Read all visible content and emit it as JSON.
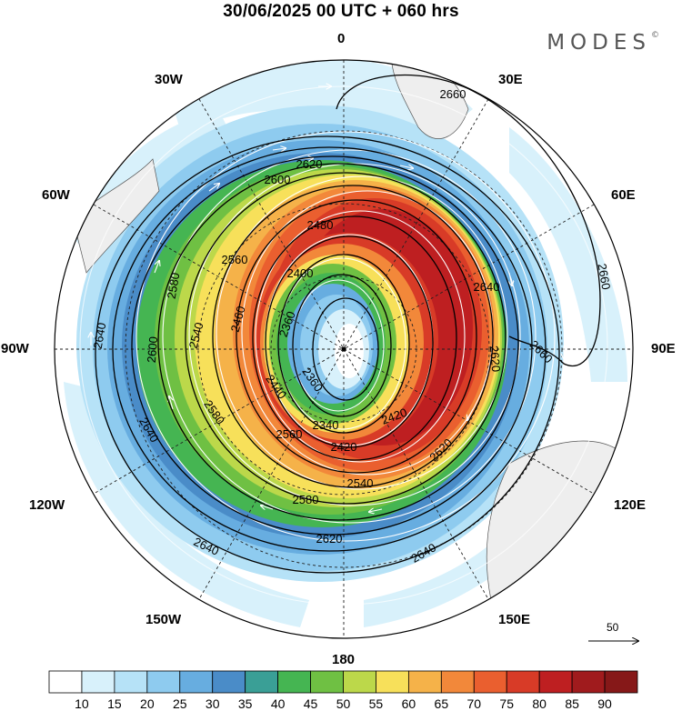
{
  "title": "30/06/2025  00 UTC  + 060 hrs",
  "brand": "MODES",
  "brand_mark": "©",
  "longitude_labels": {
    "n": "0",
    "nw": "30W",
    "ne": "30E",
    "wnw": "60W",
    "ene": "60E",
    "w": "90W",
    "e": "90E",
    "wsw": "120W",
    "ese": "120E",
    "sw": "150W",
    "se": "150E",
    "s": "180"
  },
  "contour_labels": [
    "2660",
    "2620",
    "2600",
    "2480",
    "2640",
    "2660",
    "2580",
    "2560",
    "2400",
    "2640",
    "2660",
    "2540",
    "2460",
    "2360",
    "2620",
    "2600",
    "2360",
    "2340",
    "2440",
    "2420",
    "2580",
    "2420",
    "2560",
    "2640",
    "2620",
    "2540",
    "2580",
    "2640",
    "2620",
    "2640"
  ],
  "reference_vector": "50",
  "colorbar": {
    "ticks": [
      "10",
      "15",
      "20",
      "25",
      "30",
      "35",
      "40",
      "45",
      "50",
      "55",
      "60",
      "65",
      "70",
      "75",
      "80",
      "85",
      "90"
    ],
    "colors": [
      "#ffffff",
      "#d8f1fb",
      "#b6e2f7",
      "#8ecbef",
      "#67ade0",
      "#4a8cc8",
      "#3a9f96",
      "#45b552",
      "#6fc043",
      "#bcd84a",
      "#f7e05a",
      "#f5b249",
      "#f2883a",
      "#ea5f2f",
      "#d83b27",
      "#be1f21",
      "#a01b1d",
      "#861818"
    ]
  },
  "colors": {
    "land": "#eeeeee",
    "ring_white": "#ffffff",
    "ocean_lightblue": "#b6e2f7",
    "jet_core": "#be1f21"
  }
}
